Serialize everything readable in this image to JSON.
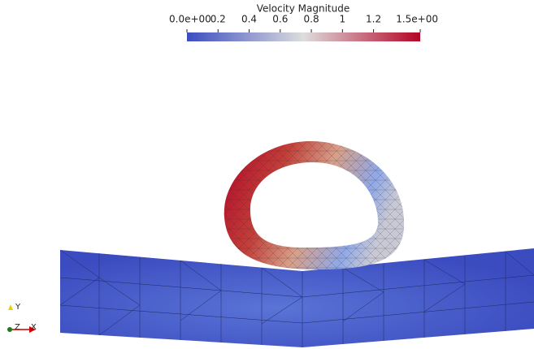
{
  "colorbar": {
    "title": "Velocity Magnitude",
    "range": [
      0,
      1.5
    ],
    "ticks": [
      {
        "value": 0,
        "label": "0.0e+00"
      },
      0.2,
      0.4,
      0.6,
      0.8,
      1,
      1.2,
      {
        "value": 1.5,
        "label": "1.5e+00"
      }
    ],
    "colors": [
      "#3b4cc0",
      "#dddddd",
      "#b40426"
    ]
  },
  "axes": {
    "x": "X",
    "y": "Y",
    "z": "Z"
  }
}
